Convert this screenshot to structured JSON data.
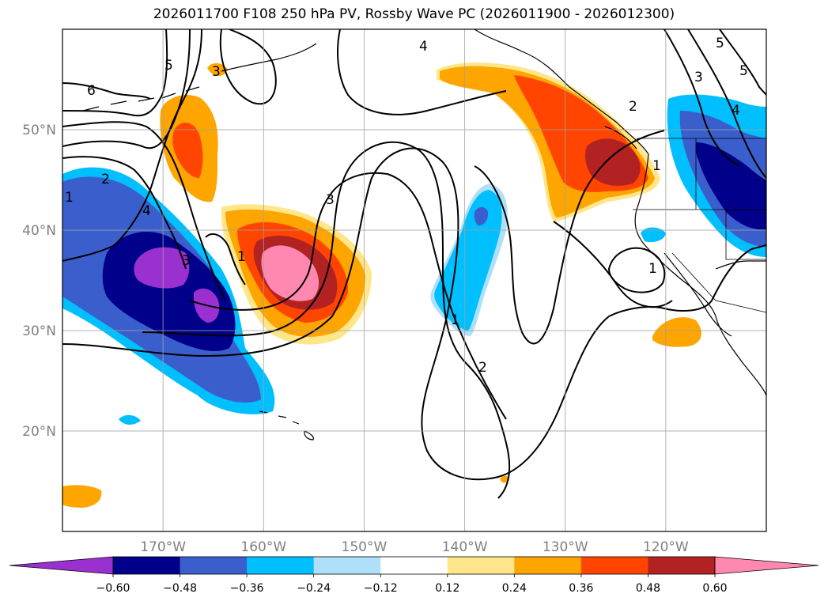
{
  "title": "2026011700 F108 250 hPa PV, Rossby Wave PC (2026011900 - 2026012300)",
  "axes": {
    "lat_labels": [
      "50°N",
      "40°N",
      "30°N",
      "20°N"
    ],
    "lon_labels": [
      "170°W",
      "160°W",
      "150°W",
      "140°W",
      "130°W",
      "120°W"
    ],
    "lat_values": [
      50,
      40,
      30,
      20
    ],
    "lon_values": [
      -170,
      -160,
      -150,
      -140,
      -130,
      -120
    ],
    "lat_range": [
      10,
      60
    ],
    "lon_range": [
      -180,
      -110
    ]
  },
  "colorbar": {
    "tick_labels": [
      "−0.60",
      "−0.48",
      "−0.36",
      "−0.24",
      "−0.12",
      "0.12",
      "0.24",
      "0.36",
      "0.48",
      "0.60"
    ],
    "colors": [
      "#9b30d0",
      "#00008b",
      "#3a5fcd",
      "#00bfff",
      "#afe0fa",
      "#ffffff",
      "#ffe68a",
      "#ffa500",
      "#ff4500",
      "#b22222",
      "#ff88b0"
    ]
  },
  "contour_labels": [
    "6",
    "5",
    "3",
    "4",
    "3",
    "5",
    "3",
    "4",
    "5",
    "2",
    "1",
    "4",
    "3",
    "2",
    "1",
    "1",
    "1",
    "2",
    "1"
  ]
}
